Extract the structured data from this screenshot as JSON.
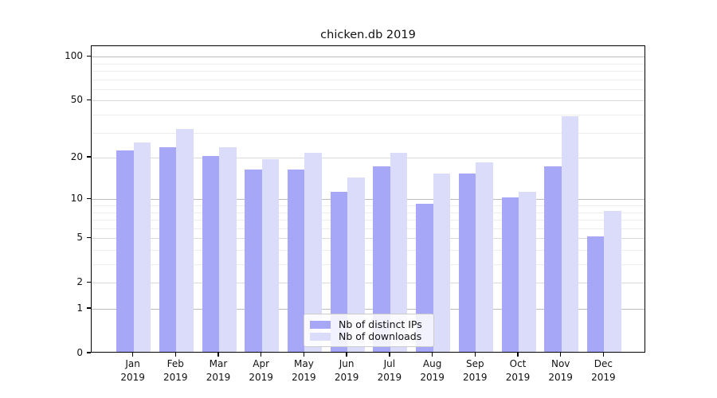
{
  "title": "chicken.db 2019",
  "colors": {
    "bar_distinct_ips": "#a7a7f7",
    "bar_downloads": "#dbdbfa",
    "grid_major": "#bcbcbc",
    "grid_mid": "#dadada",
    "grid_minor": "#ededed",
    "axis": "#000000"
  },
  "chart_data": {
    "type": "bar",
    "title": "chicken.db 2019",
    "categories": [
      "Jan 2019",
      "Feb 2019",
      "Mar 2019",
      "Apr 2019",
      "May 2019",
      "Jun 2019",
      "Jul 2019",
      "Aug 2019",
      "Sep 2019",
      "Oct 2019",
      "Nov 2019",
      "Dec 2019"
    ],
    "months": [
      "Jan",
      "Feb",
      "Mar",
      "Apr",
      "May",
      "Jun",
      "Jul",
      "Aug",
      "Sep",
      "Oct",
      "Nov",
      "Dec"
    ],
    "year": "2019",
    "series": [
      {
        "name": "Nb of distinct IPs",
        "color": "#a7a7f7",
        "values": [
          22,
          23,
          20,
          16,
          16,
          11,
          17,
          9,
          15,
          10,
          17,
          5
        ]
      },
      {
        "name": "Nb of downloads",
        "color": "#dbdbfa",
        "values": [
          25,
          31,
          23,
          19,
          21,
          14,
          21,
          15,
          18,
          11,
          38,
          8
        ]
      }
    ],
    "xlabel": "",
    "ylabel": "",
    "y_scale": "log1p",
    "ylim": [
      0,
      118
    ],
    "y_tick_values": [
      100,
      50,
      20,
      10,
      5,
      2,
      1,
      0
    ],
    "y_tick_labels": [
      "100",
      "50",
      "20",
      "10",
      "5",
      "2",
      "1",
      "0"
    ],
    "y_grid_major": [
      1,
      10,
      100
    ],
    "y_grid_mid": [
      2,
      5,
      20,
      50
    ],
    "y_grid_minor": [
      3,
      4,
      6,
      7,
      8,
      9,
      30,
      40,
      60,
      70,
      80,
      90
    ],
    "grid": true,
    "legend_position": "lower center",
    "bar_group_width": 0.8
  }
}
